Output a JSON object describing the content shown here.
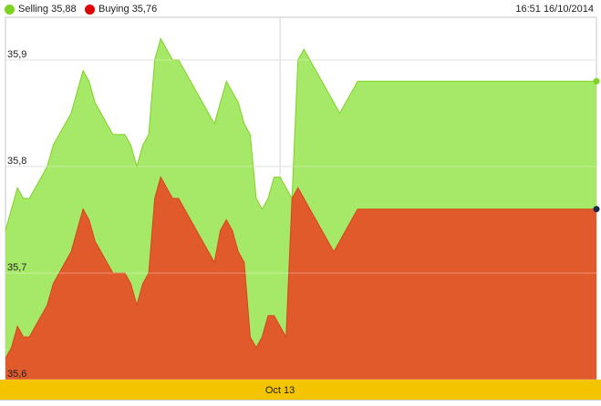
{
  "legend": {
    "selling": {
      "label": "Selling 35,88",
      "color": "#7ed321"
    },
    "buying": {
      "label": "Buying 35,76",
      "color": "#e10000"
    }
  },
  "timestamp": "16:51 16/10/2014",
  "chart_data": {
    "type": "area",
    "ylim": [
      35.6,
      35.94
    ],
    "y_ticks": [
      35.6,
      35.7,
      35.8,
      35.9
    ],
    "y_tick_labels": [
      "35,6",
      "35,7",
      "35,8",
      "35,9"
    ],
    "x_tick_labels": [
      "Oct 13"
    ],
    "x_tick_positions": [
      46
    ],
    "x": [
      0,
      1,
      2,
      3,
      4,
      5,
      6,
      7,
      8,
      9,
      10,
      11,
      12,
      13,
      14,
      15,
      16,
      17,
      18,
      19,
      20,
      21,
      22,
      23,
      24,
      25,
      26,
      27,
      28,
      29,
      30,
      31,
      32,
      33,
      34,
      35,
      36,
      37,
      38,
      39,
      40,
      41,
      42,
      43,
      44,
      45,
      46,
      47,
      48,
      49,
      50,
      51,
      52,
      53,
      54,
      55,
      56,
      57,
      58,
      59,
      60,
      61,
      62,
      63,
      64,
      65,
      66,
      67,
      68,
      69,
      70,
      71,
      72,
      73,
      74,
      75,
      76,
      77,
      78,
      79,
      80,
      81,
      82,
      83,
      84,
      85,
      86,
      87,
      88,
      89,
      90,
      91,
      92,
      93,
      94,
      95,
      96,
      97,
      98,
      99
    ],
    "series": [
      {
        "name": "Selling",
        "color": "#a6e868",
        "line_color": "#7ed321",
        "values": [
          35.74,
          35.76,
          35.78,
          35.77,
          35.77,
          35.78,
          35.79,
          35.8,
          35.82,
          35.83,
          35.84,
          35.85,
          35.87,
          35.89,
          35.88,
          35.86,
          35.85,
          35.84,
          35.83,
          35.83,
          35.83,
          35.82,
          35.8,
          35.82,
          35.83,
          35.9,
          35.92,
          35.91,
          35.9,
          35.9,
          35.89,
          35.88,
          35.87,
          35.86,
          35.85,
          35.84,
          35.86,
          35.88,
          35.87,
          35.86,
          35.84,
          35.83,
          35.77,
          35.76,
          35.77,
          35.79,
          35.79,
          35.78,
          35.77,
          35.9,
          35.91,
          35.9,
          35.89,
          35.88,
          35.87,
          35.86,
          35.85,
          35.86,
          35.87,
          35.88,
          35.88,
          35.88,
          35.88,
          35.88,
          35.88,
          35.88,
          35.88,
          35.88,
          35.88,
          35.88,
          35.88,
          35.88,
          35.88,
          35.88,
          35.88,
          35.88,
          35.88,
          35.88,
          35.88,
          35.88,
          35.88,
          35.88,
          35.88,
          35.88,
          35.88,
          35.88,
          35.88,
          35.88,
          35.88,
          35.88,
          35.88,
          35.88,
          35.88,
          35.88,
          35.88,
          35.88,
          35.88,
          35.88,
          35.88,
          35.88
        ]
      },
      {
        "name": "Buying",
        "color": "#e05a2b",
        "line_color": "#d9441a",
        "values": [
          35.62,
          35.63,
          35.65,
          35.64,
          35.64,
          35.65,
          35.66,
          35.67,
          35.69,
          35.7,
          35.71,
          35.72,
          35.74,
          35.76,
          35.75,
          35.73,
          35.72,
          35.71,
          35.7,
          35.7,
          35.7,
          35.69,
          35.67,
          35.69,
          35.7,
          35.77,
          35.79,
          35.78,
          35.77,
          35.77,
          35.76,
          35.75,
          35.74,
          35.73,
          35.72,
          35.71,
          35.74,
          35.75,
          35.74,
          35.72,
          35.71,
          35.64,
          35.63,
          35.64,
          35.66,
          35.66,
          35.65,
          35.64,
          35.77,
          35.78,
          35.77,
          35.76,
          35.75,
          35.74,
          35.73,
          35.72,
          35.73,
          35.74,
          35.75,
          35.76,
          35.76,
          35.76,
          35.76,
          35.76,
          35.76,
          35.76,
          35.76,
          35.76,
          35.76,
          35.76,
          35.76,
          35.76,
          35.76,
          35.76,
          35.76,
          35.76,
          35.76,
          35.76,
          35.76,
          35.76,
          35.76,
          35.76,
          35.76,
          35.76,
          35.76,
          35.76,
          35.76,
          35.76,
          35.76,
          35.76,
          35.76,
          35.76,
          35.76,
          35.76,
          35.76,
          35.76,
          35.76,
          35.76,
          35.76,
          35.76
        ]
      }
    ]
  }
}
